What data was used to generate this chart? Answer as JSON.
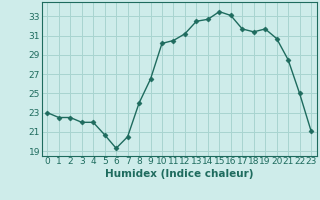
{
  "x": [
    0,
    1,
    2,
    3,
    4,
    5,
    6,
    7,
    8,
    9,
    10,
    11,
    12,
    13,
    14,
    15,
    16,
    17,
    18,
    19,
    20,
    21,
    22,
    23
  ],
  "y": [
    23.0,
    22.5,
    22.5,
    22.0,
    22.0,
    20.7,
    19.3,
    20.5,
    24.0,
    26.5,
    30.2,
    30.5,
    31.2,
    32.5,
    32.7,
    33.5,
    33.1,
    31.7,
    31.4,
    31.7,
    30.7,
    28.5,
    25.0,
    21.1
  ],
  "line_color": "#1e6b5e",
  "marker": "D",
  "marker_size": 2.5,
  "bg_color": "#ceecea",
  "grid_color": "#a8d4d0",
  "tick_color": "#1e6b5e",
  "xlabel": "Humidex (Indice chaleur)",
  "ylabel_ticks": [
    19,
    21,
    23,
    25,
    27,
    29,
    31,
    33
  ],
  "xlim": [
    -0.5,
    23.5
  ],
  "ylim": [
    18.5,
    34.5
  ],
  "xtick_labels": [
    "0",
    "1",
    "2",
    "3",
    "4",
    "5",
    "6",
    "7",
    "8",
    "9",
    "10",
    "11",
    "12",
    "13",
    "14",
    "15",
    "16",
    "17",
    "18",
    "19",
    "20",
    "21",
    "22",
    "23"
  ],
  "tick_fontsize": 6.5,
  "label_fontsize": 7.5
}
